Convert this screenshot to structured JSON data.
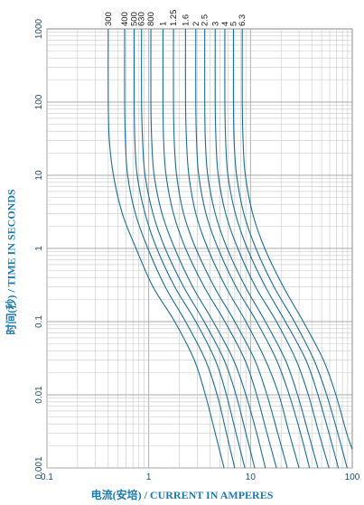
{
  "chart_data": {
    "type": "line",
    "title": "",
    "xlabel": "电流(安培) / CURRENT IN AMPERES",
    "ylabel": "时间(秒) / TIME IN SECONDS",
    "x_scale": "log",
    "y_scale": "log",
    "xlim": [
      0.1,
      100
    ],
    "ylim": [
      0.001,
      1000
    ],
    "grid": true,
    "x_ticks": [
      "0.1",
      "1",
      "10",
      "100"
    ],
    "y_ticks": [
      "0.001",
      "0.01",
      "0.1",
      "1",
      "10",
      "100",
      "1000"
    ],
    "series": [
      {
        "name": "300",
        "rating": 0.3,
        "points": [
          [
            0.4,
            1000
          ],
          [
            0.4,
            100
          ],
          [
            0.41,
            30
          ],
          [
            0.45,
            10
          ],
          [
            0.55,
            3
          ],
          [
            0.75,
            1
          ],
          [
            1.1,
            0.3
          ],
          [
            1.8,
            0.1
          ],
          [
            2.8,
            0.03
          ],
          [
            3.6,
            0.01
          ],
          [
            4.5,
            0.003
          ],
          [
            5.5,
            0.001
          ]
        ]
      },
      {
        "name": "400",
        "rating": 0.4,
        "points": [
          [
            0.58,
            1000
          ],
          [
            0.58,
            100
          ],
          [
            0.59,
            30
          ],
          [
            0.62,
            10
          ],
          [
            0.74,
            3
          ],
          [
            0.98,
            1
          ],
          [
            1.45,
            0.3
          ],
          [
            2.3,
            0.1
          ],
          [
            3.6,
            0.03
          ],
          [
            4.7,
            0.01
          ],
          [
            5.8,
            0.003
          ],
          [
            7.0,
            0.001
          ]
        ]
      },
      {
        "name": "500",
        "rating": 0.5,
        "points": [
          [
            0.72,
            1000
          ],
          [
            0.72,
            100
          ],
          [
            0.73,
            30
          ],
          [
            0.77,
            10
          ],
          [
            0.92,
            3
          ],
          [
            1.2,
            1
          ],
          [
            1.8,
            0.3
          ],
          [
            2.9,
            0.1
          ],
          [
            4.5,
            0.03
          ],
          [
            5.8,
            0.01
          ],
          [
            7.2,
            0.003
          ],
          [
            8.8,
            0.001
          ]
        ]
      },
      {
        "name": "630",
        "rating": 0.63,
        "points": [
          [
            0.85,
            1000
          ],
          [
            0.85,
            100
          ],
          [
            0.87,
            30
          ],
          [
            0.92,
            10
          ],
          [
            1.1,
            3
          ],
          [
            1.45,
            1
          ],
          [
            2.2,
            0.3
          ],
          [
            3.5,
            0.1
          ],
          [
            5.5,
            0.03
          ],
          [
            7.2,
            0.01
          ],
          [
            9.0,
            0.003
          ],
          [
            11,
            0.001
          ]
        ]
      },
      {
        "name": "800",
        "rating": 0.8,
        "points": [
          [
            1.05,
            1000
          ],
          [
            1.05,
            100
          ],
          [
            1.07,
            30
          ],
          [
            1.13,
            10
          ],
          [
            1.35,
            3
          ],
          [
            1.8,
            1
          ],
          [
            2.7,
            0.3
          ],
          [
            4.3,
            0.1
          ],
          [
            6.8,
            0.03
          ],
          [
            9.0,
            0.01
          ],
          [
            11.5,
            0.003
          ],
          [
            14,
            0.001
          ]
        ]
      },
      {
        "name": "1",
        "rating": 1,
        "points": [
          [
            1.38,
            1000
          ],
          [
            1.38,
            100
          ],
          [
            1.4,
            30
          ],
          [
            1.48,
            10
          ],
          [
            1.75,
            3
          ],
          [
            2.3,
            1
          ],
          [
            3.5,
            0.3
          ],
          [
            5.6,
            0.1
          ],
          [
            8.8,
            0.03
          ],
          [
            11.5,
            0.01
          ],
          [
            14.5,
            0.003
          ],
          [
            18,
            0.001
          ]
        ]
      },
      {
        "name": "1.25",
        "rating": 1.25,
        "points": [
          [
            1.75,
            1000
          ],
          [
            1.75,
            100
          ],
          [
            1.78,
            30
          ],
          [
            1.88,
            10
          ],
          [
            2.2,
            3
          ],
          [
            2.9,
            1
          ],
          [
            4.4,
            0.3
          ],
          [
            7.0,
            0.1
          ],
          [
            11,
            0.03
          ],
          [
            14.5,
            0.01
          ],
          [
            18.5,
            0.003
          ],
          [
            23,
            0.001
          ]
        ]
      },
      {
        "name": "1.6",
        "rating": 1.6,
        "points": [
          [
            2.3,
            1000
          ],
          [
            2.3,
            100
          ],
          [
            2.35,
            30
          ],
          [
            2.48,
            10
          ],
          [
            2.9,
            3
          ],
          [
            3.8,
            1
          ],
          [
            5.7,
            0.3
          ],
          [
            9.0,
            0.1
          ],
          [
            14,
            0.03
          ],
          [
            19,
            0.01
          ],
          [
            24,
            0.003
          ],
          [
            30,
            0.001
          ]
        ]
      },
      {
        "name": "2",
        "rating": 2,
        "points": [
          [
            2.9,
            1000
          ],
          [
            2.9,
            100
          ],
          [
            2.95,
            30
          ],
          [
            3.1,
            10
          ],
          [
            3.65,
            3
          ],
          [
            4.8,
            1
          ],
          [
            7.2,
            0.3
          ],
          [
            11.5,
            0.1
          ],
          [
            18,
            0.03
          ],
          [
            24,
            0.01
          ],
          [
            31,
            0.003
          ],
          [
            38,
            0.001
          ]
        ]
      },
      {
        "name": "2.5",
        "rating": 2.5,
        "points": [
          [
            3.55,
            1000
          ],
          [
            3.55,
            100
          ],
          [
            3.6,
            30
          ],
          [
            3.8,
            10
          ],
          [
            4.5,
            3
          ],
          [
            5.9,
            1
          ],
          [
            8.9,
            0.3
          ],
          [
            14,
            0.1
          ],
          [
            22,
            0.03
          ],
          [
            29,
            0.01
          ],
          [
            37,
            0.003
          ],
          [
            46,
            0.001
          ]
        ]
      },
      {
        "name": "3",
        "rating": 3,
        "points": [
          [
            4.5,
            1000
          ],
          [
            4.5,
            100
          ],
          [
            4.58,
            30
          ],
          [
            4.82,
            10
          ],
          [
            5.7,
            3
          ],
          [
            7.5,
            1
          ],
          [
            11.2,
            0.3
          ],
          [
            18,
            0.1
          ],
          [
            28,
            0.03
          ],
          [
            37,
            0.01
          ],
          [
            47,
            0.003
          ],
          [
            59,
            0.001
          ]
        ]
      },
      {
        "name": "4",
        "rating": 4,
        "points": [
          [
            5.6,
            1000
          ],
          [
            5.6,
            100
          ],
          [
            5.7,
            30
          ],
          [
            6.0,
            10
          ],
          [
            7.1,
            3
          ],
          [
            9.3,
            1
          ],
          [
            14,
            0.3
          ],
          [
            22,
            0.1
          ],
          [
            35,
            0.03
          ],
          [
            46,
            0.01
          ],
          [
            59,
            0.003
          ],
          [
            73,
            0.001
          ]
        ]
      },
      {
        "name": "5",
        "rating": 5,
        "points": [
          [
            6.8,
            1000
          ],
          [
            6.8,
            100
          ],
          [
            6.9,
            30
          ],
          [
            7.3,
            10
          ],
          [
            8.6,
            3
          ],
          [
            11.3,
            1
          ],
          [
            17,
            0.3
          ],
          [
            27,
            0.1
          ],
          [
            42,
            0.03
          ],
          [
            56,
            0.01
          ],
          [
            72,
            0.003
          ],
          [
            89,
            0.001
          ]
        ]
      },
      {
        "name": "6.3",
        "rating": 6.3,
        "points": [
          [
            8.3,
            1000
          ],
          [
            8.3,
            100
          ],
          [
            8.45,
            30
          ],
          [
            8.9,
            10
          ],
          [
            10.5,
            3
          ],
          [
            13.8,
            1
          ],
          [
            21,
            0.3
          ],
          [
            33,
            0.1
          ],
          [
            52,
            0.03
          ],
          [
            69,
            0.01
          ],
          [
            88,
            0.003
          ],
          [
            100,
            0.0018
          ]
        ]
      }
    ]
  }
}
